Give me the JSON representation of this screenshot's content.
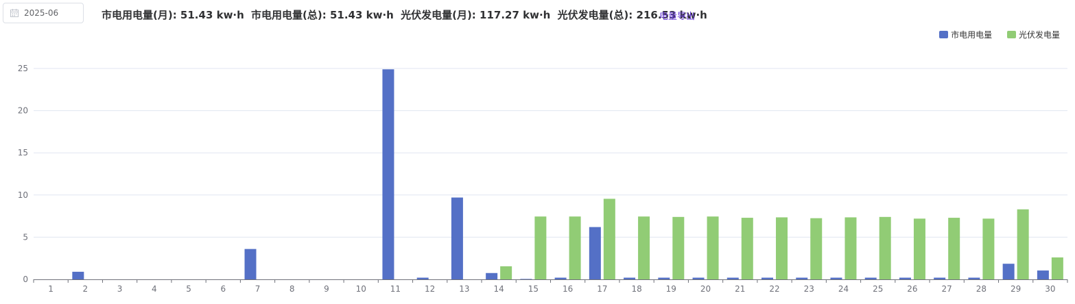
{
  "toolbar": {
    "date_value": "2025-06",
    "stats": [
      {
        "label": "市电用电量(月): 51.43 kw·h"
      },
      {
        "label": "市电用电量(总): 51.43 kw·h"
      },
      {
        "label": "光伏发电量(月): 117.27 kw·h"
      },
      {
        "label": "光伏发电量(总): 216.53 kw·h"
      }
    ],
    "export_label": "电量导出",
    "calendar_icon": "calendar-icon"
  },
  "colors": {
    "grid_power": "#5470c6",
    "solar_power": "#91cc75",
    "export_link": "#6a3fd6"
  },
  "chart_data": {
    "type": "bar",
    "categories": [
      "1",
      "2",
      "3",
      "4",
      "5",
      "6",
      "7",
      "8",
      "9",
      "10",
      "11",
      "12",
      "13",
      "14",
      "15",
      "16",
      "17",
      "18",
      "19",
      "20",
      "21",
      "22",
      "23",
      "24",
      "25",
      "26",
      "27",
      "28",
      "29",
      "30"
    ],
    "series": [
      {
        "name": "市电用电量",
        "color": "#5470c6",
        "values": [
          0,
          0.9,
          0,
          0,
          0,
          0,
          3.6,
          0,
          0,
          0,
          24.9,
          0.2,
          9.7,
          0.75,
          0.05,
          0.2,
          6.2,
          0.2,
          0.2,
          0.2,
          0.2,
          0.2,
          0.2,
          0.2,
          0.2,
          0.2,
          0.2,
          0.2,
          1.85,
          1.05
        ]
      },
      {
        "name": "光伏发电量",
        "color": "#91cc75",
        "values": [
          0,
          0,
          0,
          0,
          0,
          0,
          0,
          0,
          0,
          0,
          0,
          0,
          0,
          1.55,
          7.45,
          7.45,
          9.55,
          7.45,
          7.4,
          7.45,
          7.3,
          7.35,
          7.25,
          7.35,
          7.4,
          7.2,
          7.3,
          7.2,
          8.3,
          2.6
        ]
      }
    ],
    "ylim": [
      0,
      25
    ],
    "yticks": [
      "0",
      "5",
      "10",
      "15",
      "20",
      "25"
    ],
    "grid": true,
    "legend_position": "top-right"
  }
}
